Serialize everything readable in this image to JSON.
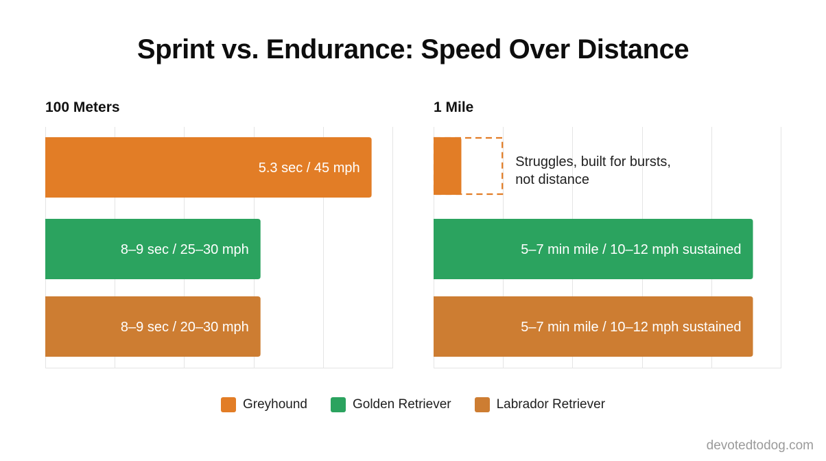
{
  "title": "Sprint vs. Endurance: Speed Over Distance",
  "watermark": "devotedtodog.com",
  "colors": {
    "Greyhound": "#E27D26",
    "Golden Retriever": "#2BA35F",
    "Labrador Retriever": "#CD7D32",
    "grid": "#E4E4E4"
  },
  "legend": [
    {
      "name": "Greyhound",
      "color": "#E27D26"
    },
    {
      "name": "Golden Retriever",
      "color": "#2BA35F"
    },
    {
      "name": "Labrador Retriever",
      "color": "#CD7D32"
    }
  ],
  "chart_data": [
    {
      "type": "bar",
      "orientation": "horizontal",
      "title": "100 Meters",
      "xlabel": "",
      "ylabel": "",
      "grid": true,
      "xlim": [
        0,
        5
      ],
      "categories": [
        "Greyhound",
        "Golden Retriever",
        "Labrador Retriever"
      ],
      "values": [
        4.7,
        3.1,
        3.1
      ],
      "labels": [
        "5.3 sec / 45 mph",
        "8–9 sec / 25–30 mph",
        "8–9 sec / 20–30 mph"
      ]
    },
    {
      "type": "bar",
      "orientation": "horizontal",
      "title": "1 Mile",
      "xlabel": "",
      "ylabel": "",
      "grid": true,
      "xlim": [
        0,
        5
      ],
      "categories": [
        "Greyhound",
        "Golden Retriever",
        "Labrador Retriever"
      ],
      "values": [
        0.4,
        4.6,
        4.6
      ],
      "outline_values": [
        1.0,
        null,
        null
      ],
      "labels": [
        "",
        "5–7 min mile / 10–12 mph sustained",
        "5–7 min mile / 10–12 mph sustained"
      ],
      "annotations": [
        {
          "category": "Greyhound",
          "lines": [
            "Struggles, built for bursts,",
            "not distance"
          ]
        }
      ]
    }
  ]
}
